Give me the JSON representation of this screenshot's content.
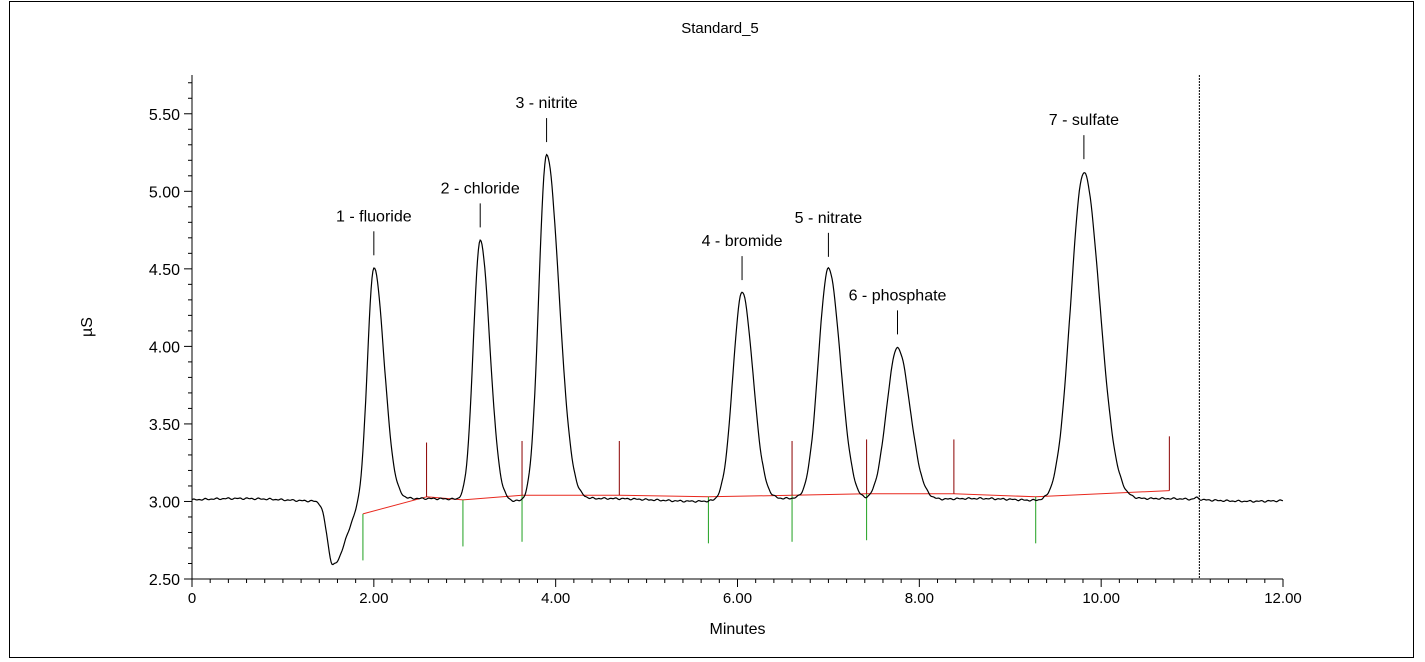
{
  "chart_data": {
    "type": "line",
    "title": "Standard_5",
    "xlabel": "Minutes",
    "ylabel": "µS",
    "xlim": [
      0,
      12
    ],
    "ylim": [
      2.5,
      5.75
    ],
    "grid": false,
    "x_ticks": [
      0,
      2,
      4,
      6,
      8,
      10,
      12
    ],
    "x_tick_labels": [
      "0",
      "2.00",
      "4.00",
      "6.00",
      "8.00",
      "10.00",
      "12.00"
    ],
    "y_ticks": [
      2.5,
      3.0,
      3.5,
      4.0,
      4.5,
      5.0,
      5.5
    ],
    "y_tick_labels": [
      "2.50",
      "3.00",
      "3.50",
      "4.00",
      "4.50",
      "5.00",
      "5.50"
    ],
    "colors": {
      "trace": "#000000",
      "baseline": "#e8281e",
      "start_marker": "#1fa01f",
      "end_marker": "#8b0000"
    },
    "trace": {
      "base_level": 3.01,
      "dip": {
        "rt": 1.55,
        "depth": 0.41
      },
      "peaks": [
        {
          "label": "1 - fluoride",
          "rt": 2.0,
          "height": 4.51
        },
        {
          "label": "2 - chloride",
          "rt": 3.17,
          "height": 4.69
        },
        {
          "label": "3 - nitrite",
          "rt": 3.9,
          "height": 5.24
        },
        {
          "label": "4 - bromide",
          "rt": 6.05,
          "height": 4.35
        },
        {
          "label": "5 - nitrate",
          "rt": 7.0,
          "height": 4.5
        },
        {
          "label": "6 - phosphate",
          "rt": 7.76,
          "height": 4.0
        },
        {
          "label": "7 - sulfate",
          "rt": 9.81,
          "height": 5.13
        }
      ]
    },
    "baseline_points": [
      [
        1.88,
        2.92
      ],
      [
        2.58,
        3.03
      ],
      [
        2.98,
        3.01
      ],
      [
        3.63,
        3.04
      ],
      [
        4.7,
        3.04
      ],
      [
        5.68,
        3.03
      ],
      [
        6.6,
        3.04
      ],
      [
        7.42,
        3.05
      ],
      [
        8.38,
        3.05
      ],
      [
        9.28,
        3.03
      ],
      [
        10.75,
        3.07
      ]
    ],
    "peak_start_markers": [
      1.88,
      2.98,
      3.63,
      5.68,
      6.6,
      7.42,
      9.28
    ],
    "peak_end_markers": [
      2.58,
      3.63,
      4.7,
      6.6,
      7.42,
      8.38,
      10.75
    ],
    "cursor_line_x": 11.08
  }
}
